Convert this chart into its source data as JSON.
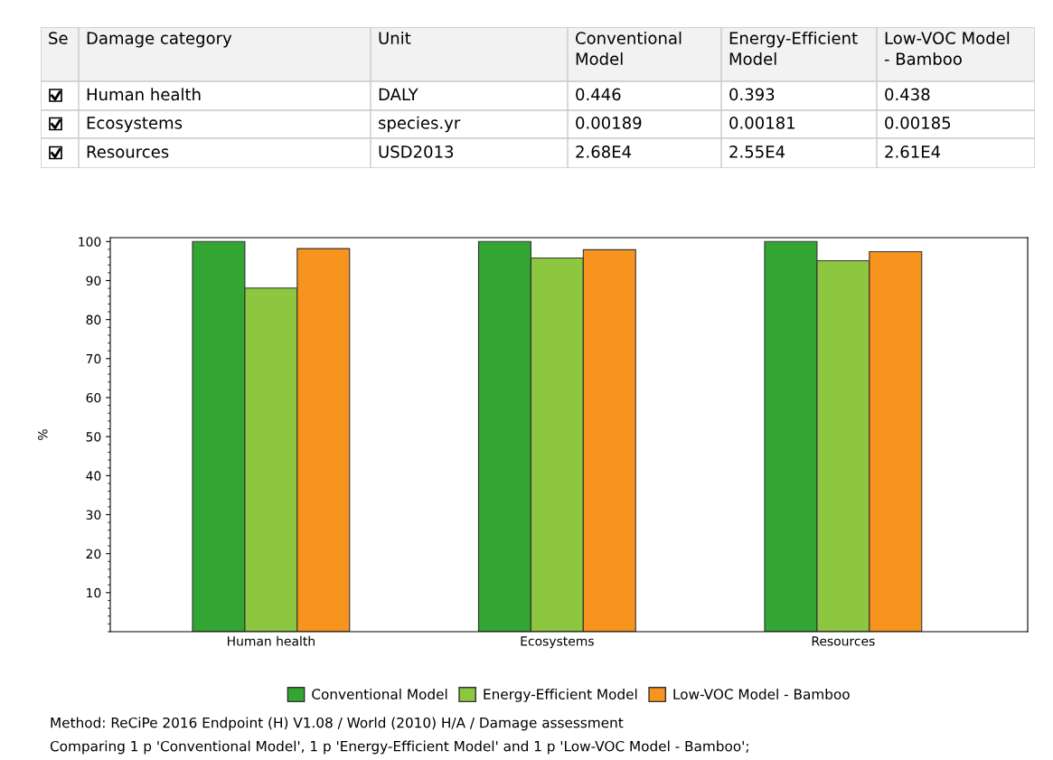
{
  "chart_data": [
    {
      "type": "other",
      "categories": [
        "Se",
        "Damage category",
        "Unit",
        "Conventional\nModel",
        "Energy-Efficient\nModel",
        "Low-VOC Model\n- Bamboo"
      ],
      "cell_labels": [
        [
          null,
          "Human health",
          "DALY",
          "0.446",
          "0.393",
          "0.438"
        ],
        [
          null,
          "Ecosystems",
          "species.yr",
          "0.00189",
          "0.00181",
          "0.00185"
        ],
        [
          null,
          "Resources",
          "USD2013",
          "2.68E4",
          "2.55E4",
          "2.61E4"
        ]
      ]
    },
    {
      "type": "bar",
      "ylabel": "%",
      "categories": [
        "Human health",
        "Ecosystems",
        "Resources"
      ],
      "series": [
        {
          "name": "Conventional Model",
          "color": "#33a532",
          "values": [
            100,
            100,
            100
          ]
        },
        {
          "name": "Energy-Efficient Model",
          "color": "#8dc63f",
          "values": [
            88.1,
            95.8,
            95.1
          ]
        },
        {
          "name": "Low-VOC Model - Bamboo",
          "color": "#f7941d",
          "values": [
            98.2,
            97.9,
            97.4
          ]
        }
      ],
      "ylim": [
        0,
        101
      ],
      "yticks": [
        10,
        20,
        30,
        40,
        50,
        60,
        70,
        80,
        90,
        100
      ],
      "grid": false,
      "legend": "bottom",
      "annotations": [
        "Method: ReCiPe 2016 Endpoint (H) V1.08 / World (2010) H/A / Damage assessment",
        "Comparing 1 p 'Conventional Model', 1 p 'Energy-Efficient Model' and 1 p 'Low-VOC Model - Bamboo';"
      ]
    }
  ]
}
